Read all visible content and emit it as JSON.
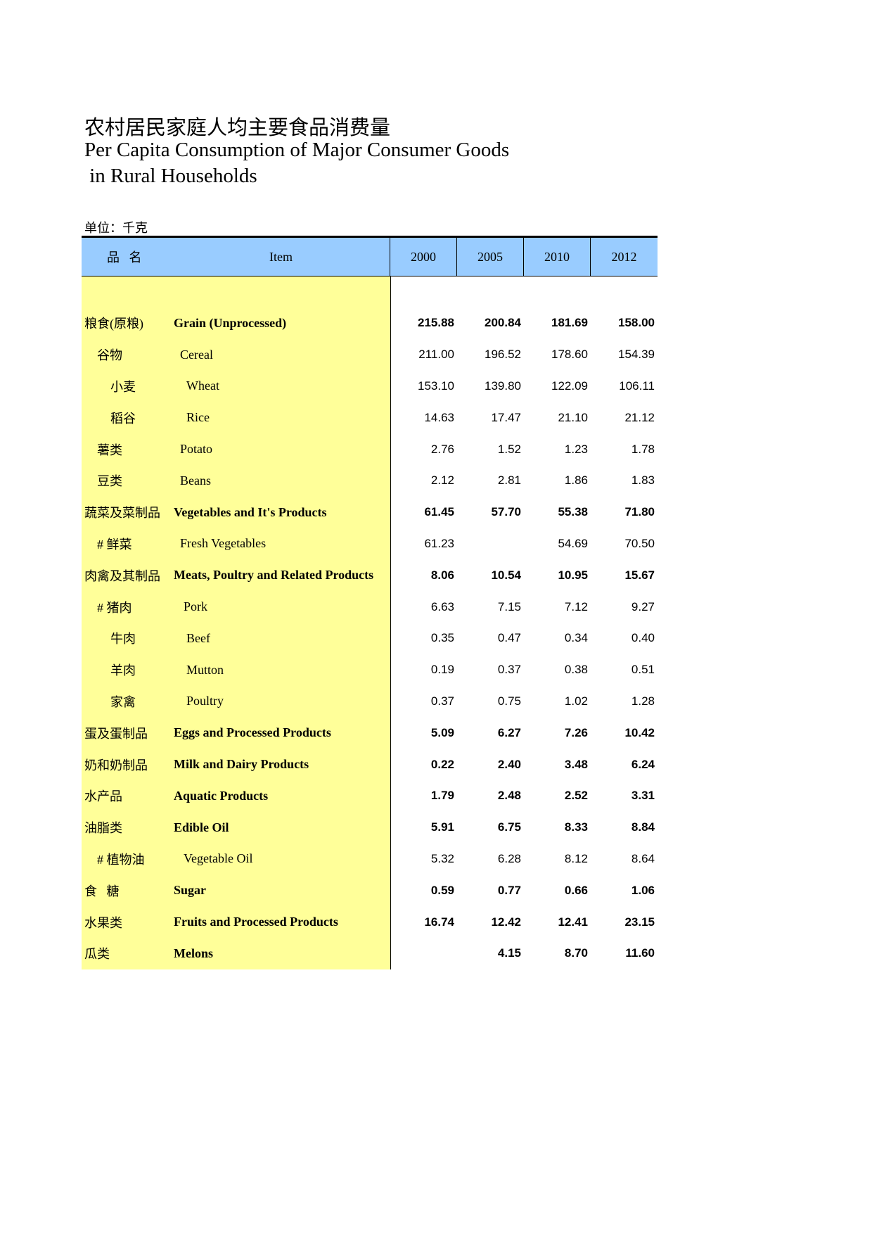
{
  "title": {
    "cn": "农村居民家庭人均主要食品消费量",
    "en_line1": "Per Capita Consumption of Major Consumer Goods",
    "en_line2": " in Rural Households"
  },
  "unit": "单位：千克",
  "colors": {
    "header_bg": "#99ccff",
    "label_bg": "#ffff99"
  },
  "table": {
    "headers": {
      "cn": "品   名",
      "en": "Item",
      "years": [
        "2000",
        "2005",
        "2010",
        "2012"
      ]
    },
    "rows": [
      {
        "level": "l0",
        "bold": true,
        "cn": "粮食(原粮)",
        "en": "Grain (Unprocessed)",
        "values": [
          "215.88",
          "200.84",
          "181.69",
          "158.00"
        ]
      },
      {
        "level": "l1",
        "bold": false,
        "cn": "谷物",
        "en": "Cereal",
        "values": [
          "211.00",
          "196.52",
          "178.60",
          "154.39"
        ]
      },
      {
        "level": "l2",
        "bold": false,
        "cn": "小麦",
        "en": "Wheat",
        "values": [
          "153.10",
          "139.80",
          "122.09",
          "106.11"
        ]
      },
      {
        "level": "l2",
        "bold": false,
        "cn": "稻谷",
        "en": "Rice",
        "values": [
          "14.63",
          "17.47",
          "21.10",
          "21.12"
        ]
      },
      {
        "level": "l1",
        "bold": false,
        "cn": "薯类",
        "en": "Potato",
        "values": [
          "2.76",
          "1.52",
          "1.23",
          "1.78"
        ]
      },
      {
        "level": "l1",
        "bold": false,
        "cn": "豆类",
        "en": "Beans",
        "values": [
          "2.12",
          "2.81",
          "1.86",
          "1.83"
        ]
      },
      {
        "level": "l0",
        "bold": true,
        "cn": "蔬菜及菜制品",
        "en": "Vegetables and It's Products",
        "values": [
          "61.45",
          "57.70",
          "55.38",
          "71.80"
        ]
      },
      {
        "level": "l1",
        "bold": false,
        "cn": "# 鲜菜",
        "en": "Fresh Vegetables",
        "values": [
          "61.23",
          "",
          "54.69",
          "70.50"
        ]
      },
      {
        "level": "l0",
        "bold": true,
        "cn": "肉禽及其制品",
        "en": "Meats, Poultry and Related Products",
        "values": [
          "8.06",
          "10.54",
          "10.95",
          "15.67"
        ]
      },
      {
        "level": "l1n",
        "bold": false,
        "cn": "# 猪肉",
        "en": "Pork",
        "values": [
          "6.63",
          "7.15",
          "7.12",
          "9.27"
        ]
      },
      {
        "level": "l2",
        "bold": false,
        "cn": "牛肉",
        "en": "Beef",
        "values": [
          "0.35",
          "0.47",
          "0.34",
          "0.40"
        ]
      },
      {
        "level": "l2",
        "bold": false,
        "cn": "羊肉",
        "en": "Mutton",
        "values": [
          "0.19",
          "0.37",
          "0.38",
          "0.51"
        ]
      },
      {
        "level": "l2",
        "bold": false,
        "cn": "家禽",
        "en": "Poultry",
        "values": [
          "0.37",
          "0.75",
          "1.02",
          "1.28"
        ]
      },
      {
        "level": "l0",
        "bold": true,
        "cn": "蛋及蛋制品",
        "en": "Eggs and Processed Products",
        "values": [
          "5.09",
          "6.27",
          "7.26",
          "10.42"
        ]
      },
      {
        "level": "l0",
        "bold": true,
        "cn": "奶和奶制品",
        "en": "Milk and Dairy Products",
        "values": [
          "0.22",
          "2.40",
          "3.48",
          "6.24"
        ]
      },
      {
        "level": "l0",
        "bold": true,
        "cn": "水产品",
        "en": "Aquatic Products",
        "values": [
          "1.79",
          "2.48",
          "2.52",
          "3.31"
        ]
      },
      {
        "level": "l0",
        "bold": true,
        "cn": "油脂类",
        "en": "Edible Oil",
        "values": [
          "5.91",
          "6.75",
          "8.33",
          "8.84"
        ]
      },
      {
        "level": "l1n",
        "bold": false,
        "cn": "# 植物油",
        "en": "Vegetable Oil",
        "values": [
          "5.32",
          "6.28",
          "8.12",
          "8.64"
        ]
      },
      {
        "level": "l0",
        "bold": true,
        "cn": "食   糖",
        "en": "Sugar",
        "values": [
          "0.59",
          "0.77",
          "0.66",
          "1.06"
        ]
      },
      {
        "level": "l0",
        "bold": true,
        "cn": "水果类",
        "en": "Fruits and Processed Products",
        "values": [
          "16.74",
          "12.42",
          "12.41",
          "23.15"
        ]
      },
      {
        "level": "l0",
        "bold": true,
        "cn": "瓜类",
        "en": "Melons",
        "values": [
          "",
          "4.15",
          "8.70",
          "11.60"
        ]
      }
    ]
  }
}
